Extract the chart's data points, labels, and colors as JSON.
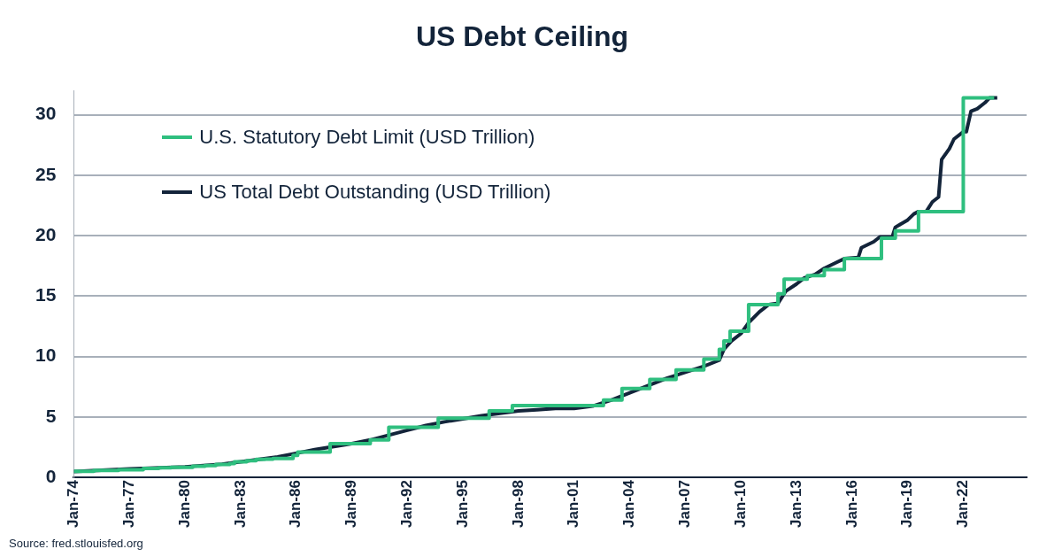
{
  "chart_data": {
    "type": "line",
    "title": "US Debt Ceiling",
    "annotations": [
      "Source: fred.stlouisfed.org"
    ],
    "xlim": [
      "1974-01",
      "2025-06"
    ],
    "xticks": [
      {
        "value": "1974-01",
        "label": "Jan-74"
      },
      {
        "value": "1977-01",
        "label": "Jan-77"
      },
      {
        "value": "1980-01",
        "label": "Jan-80"
      },
      {
        "value": "1983-01",
        "label": "Jan-83"
      },
      {
        "value": "1986-01",
        "label": "Jan-86"
      },
      {
        "value": "1989-01",
        "label": "Jan-89"
      },
      {
        "value": "1992-01",
        "label": "Jan-92"
      },
      {
        "value": "1995-01",
        "label": "Jan-95"
      },
      {
        "value": "1998-01",
        "label": "Jan-98"
      },
      {
        "value": "2001-01",
        "label": "Jan-01"
      },
      {
        "value": "2004-01",
        "label": "Jan-04"
      },
      {
        "value": "2007-01",
        "label": "Jan-07"
      },
      {
        "value": "2010-01",
        "label": "Jan-10"
      },
      {
        "value": "2013-01",
        "label": "Jan-13"
      },
      {
        "value": "2016-01",
        "label": "Jan-16"
      },
      {
        "value": "2019-01",
        "label": "Jan-19"
      },
      {
        "value": "2022-01",
        "label": "Jan-22"
      }
    ],
    "ylim": [
      0,
      32
    ],
    "yticks": [
      0,
      5,
      10,
      15,
      20,
      25,
      30
    ],
    "grid": "y",
    "legend": "top left",
    "marker": "none",
    "series": [
      {
        "name": "U.S. Statutory Debt Limit (USD Trillion)",
        "type": "step",
        "color": "#2fbf7f",
        "x": [
          "1974-01",
          "1975-02",
          "1976-06",
          "1977-10",
          "1978-08",
          "1979-04",
          "1980-06",
          "1981-02",
          "1981-09",
          "1982-06",
          "1982-09",
          "1983-05",
          "1983-11",
          "1984-05",
          "1984-10",
          "1985-11",
          "1986-02",
          "1987-11",
          "1990-01",
          "1991-01",
          "1993-09",
          "1996-06",
          "1997-09",
          "2002-08",
          "2003-08",
          "2005-02",
          "2006-07",
          "2008-01",
          "2008-11",
          "2009-02",
          "2009-06",
          "2010-06",
          "2012-01",
          "2012-05",
          "2013-08",
          "2014-07",
          "2015-08",
          "2017-08",
          "2018-05",
          "2019-08",
          "2022-01",
          "2023-09"
        ],
        "values": [
          0.5,
          0.58,
          0.64,
          0.75,
          0.8,
          0.83,
          0.93,
          0.99,
          1.08,
          1.14,
          1.29,
          1.39,
          1.49,
          1.52,
          1.57,
          1.82,
          2.1,
          2.8,
          3.1,
          4.15,
          4.9,
          5.5,
          5.95,
          6.4,
          7.35,
          8.1,
          8.9,
          9.8,
          10.6,
          11.3,
          12.1,
          14.3,
          15.2,
          16.4,
          16.7,
          17.2,
          18.1,
          19.8,
          20.4,
          22,
          31.4,
          31.4
        ]
      },
      {
        "name": "US Total Debt Outstanding (USD Trillion)",
        "type": "line",
        "color": "#13243a",
        "x": [
          "1974-01",
          "1977-01",
          "1980-01",
          "1982-01",
          "1983-01",
          "1985-01",
          "1986-01",
          "1987-01",
          "1989-01",
          "1990-01",
          "1991-01",
          "1992-01",
          "1993-01",
          "1994-01",
          "1995-01",
          "1996-01",
          "1997-01",
          "1998-01",
          "1999-01",
          "2000-01",
          "2001-01",
          "2002-01",
          "2003-01",
          "2004-01",
          "2005-01",
          "2006-01",
          "2007-01",
          "2008-01",
          "2008-11",
          "2009-02",
          "2009-07",
          "2010-01",
          "2010-06",
          "2011-01",
          "2011-07",
          "2012-01",
          "2012-06",
          "2013-01",
          "2013-06",
          "2014-01",
          "2014-07",
          "2015-03",
          "2015-08",
          "2016-05",
          "2016-07",
          "2017-03",
          "2017-07",
          "2018-03",
          "2018-05",
          "2019-01",
          "2019-05",
          "2019-08",
          "2020-01",
          "2020-05",
          "2020-09",
          "2020-11",
          "2021-04",
          "2021-07",
          "2022-01",
          "2022-03",
          "2022-06",
          "2022-10",
          "2023-03",
          "2023-06",
          "2023-11"
        ],
        "values": [
          0.48,
          0.7,
          0.88,
          1.1,
          1.3,
          1.7,
          2,
          2.3,
          2.8,
          3.1,
          3.5,
          3.9,
          4.3,
          4.6,
          4.85,
          5.1,
          5.3,
          5.5,
          5.6,
          5.7,
          5.7,
          5.9,
          6.4,
          7,
          7.6,
          8.2,
          8.7,
          9.2,
          9.7,
          10.6,
          11.3,
          11.9,
          12.8,
          13.7,
          14.3,
          14.4,
          15.4,
          16,
          16.5,
          16.8,
          17.3,
          17.8,
          18.1,
          18.2,
          19,
          19.5,
          19.9,
          19.9,
          20.7,
          21.3,
          21.8,
          22,
          22,
          22.8,
          23.2,
          26.3,
          27.2,
          28,
          28.6,
          28.6,
          30.3,
          30.5,
          31,
          31.4,
          31.4
        ]
      }
    ]
  }
}
